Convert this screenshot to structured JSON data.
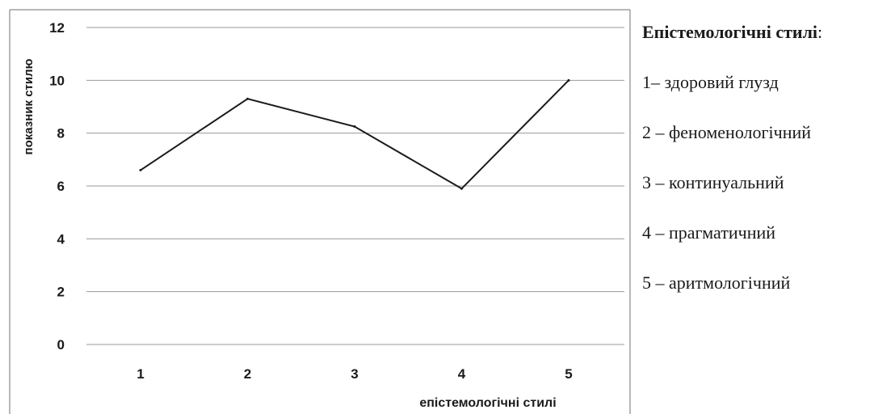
{
  "chart_data": {
    "type": "line",
    "title": "",
    "xlabel": "епістемологічні стилі",
    "ylabel": "показник стилю",
    "categories": [
      "1",
      "2",
      "3",
      "4",
      "5"
    ],
    "series": [
      {
        "values": [
          6.6,
          9.3,
          8.25,
          5.9,
          10.0
        ]
      }
    ],
    "ylim": [
      0,
      12
    ],
    "yticks": [
      "0",
      "2",
      "4",
      "6",
      "8",
      "10",
      "12"
    ],
    "grid": true,
    "colors": {
      "line": "#1a1a1a",
      "grid": "#9a9a9a",
      "frame": "#8a8a8a",
      "text": "#1a1a1a"
    }
  },
  "legend": {
    "title": "Епістемологічні стилі",
    "title_suffix": ":",
    "items": [
      "1– здоровий глузд",
      "2 – феноменологічний",
      "3 – континуальний",
      "4 – прагматичний",
      "5 – аритмологічний"
    ]
  }
}
